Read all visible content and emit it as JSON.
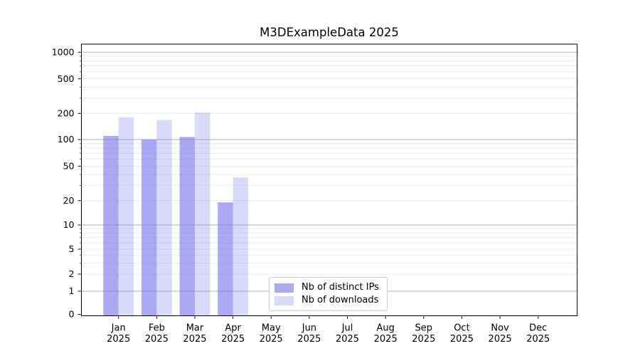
{
  "chart_data": {
    "type": "bar",
    "title": "M3DExampleData 2025",
    "categories": [
      "Jan",
      "Feb",
      "Mar",
      "Apr",
      "May",
      "Jun",
      "Jul",
      "Aug",
      "Sep",
      "Oct",
      "Nov",
      "Dec"
    ],
    "category_sublabel": "2025",
    "series": [
      {
        "name": "Nb of distinct IPs",
        "color": "#7777ee",
        "alpha": 0.63,
        "values": [
          110,
          100,
          107,
          19,
          0,
          0,
          0,
          0,
          0,
          0,
          0,
          0
        ]
      },
      {
        "name": "Nb of downloads",
        "color": "#7777ee",
        "alpha": 0.28,
        "values": [
          180,
          168,
          205,
          37,
          0,
          0,
          0,
          0,
          0,
          0,
          0,
          0
        ]
      }
    ],
    "yticks": [
      0,
      1,
      2,
      5,
      10,
      20,
      50,
      100,
      200,
      500,
      1000
    ],
    "xlabel": "",
    "ylabel": "",
    "yscale": "symlog",
    "ylim": [
      0,
      1000
    ],
    "grid": "horizontal major and minor",
    "legend_position": "lower center inside plot",
    "style": {
      "major_grid_color": "#b0b0b0",
      "minor_grid_color": "#e7e7e7",
      "spine_color": "#000000",
      "text_color": "#000000",
      "background": "#ffffff"
    }
  }
}
